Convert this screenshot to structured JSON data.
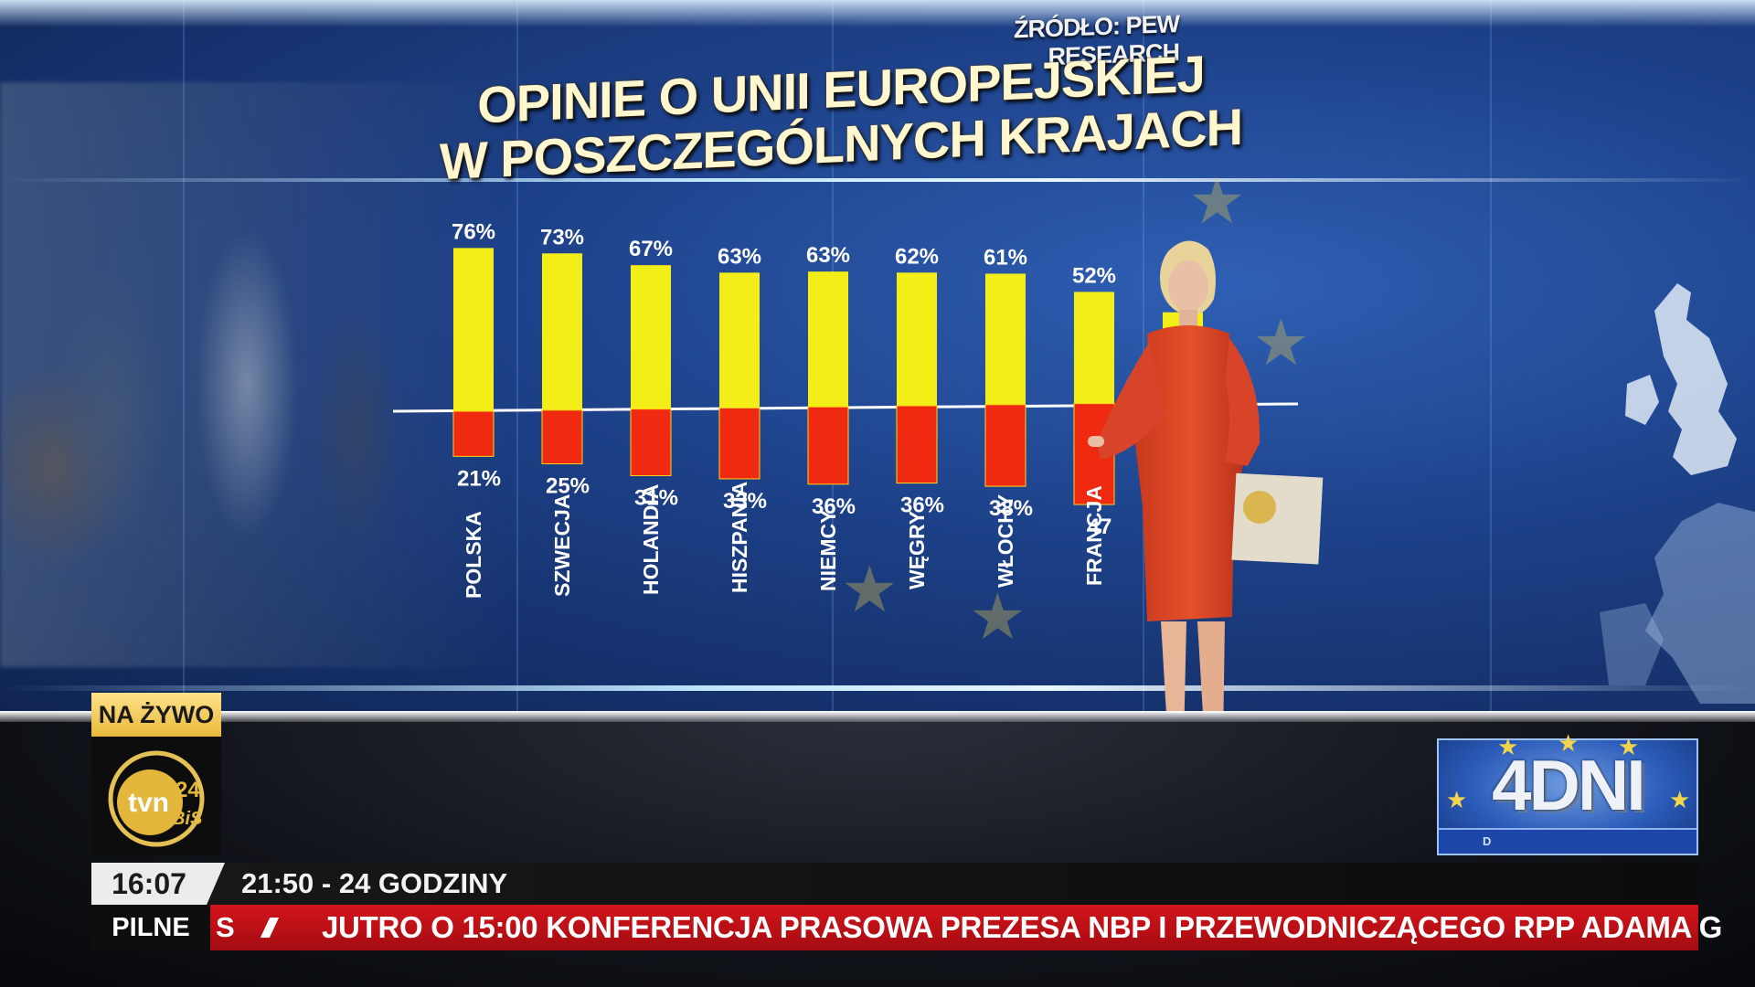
{
  "broadcast": {
    "live_label": "NA ŻYWO",
    "channel_logo": "tvn24 BiS",
    "channel_logo_main": "tvn",
    "channel_logo_num": "24",
    "channel_logo_sub": "BiS",
    "time": "16:07",
    "info_line": "21:50 - 24 GODZINY",
    "breaking_label": "PILNE",
    "ticker_prev": "S",
    "ticker_text": "JUTRO O 15:00 KONFERENCJA PRASOWA PREZESA NBP I PRZEWODNICZĄCEGO RPP ADAMA G",
    "badge_text": "4DNI",
    "badge_sub": "D"
  },
  "chart_data": {
    "type": "bar",
    "title": "OPINIE O UNII EUROPEJSKIEJ W POSZCZEGÓLNYCH KRAJACH",
    "title_line1": "OPINIE O UNII EUROPEJSKIEJ",
    "title_line2": "W POSZCZEGÓLNYCH KRAJACH",
    "source": "ŹRÓDŁO: PEW RESEARCH",
    "categories": [
      "POLSKA",
      "SZWECJA",
      "HOLANDIA",
      "HISZPANIA",
      "NIEMCY",
      "WĘGRY",
      "WŁOCHY",
      "FRANCJA",
      ""
    ],
    "series": [
      {
        "values": [
          76,
          73,
          67,
          63,
          63,
          62,
          61,
          52,
          null
        ],
        "labels": [
          "76%",
          "73%",
          "67%",
          "63%",
          "63%",
          "62%",
          "61%",
          "52%",
          "%"
        ],
        "direction": "up"
      },
      {
        "values": [
          21,
          25,
          31,
          33,
          36,
          36,
          38,
          47,
          null
        ],
        "labels": [
          "21%",
          "25%",
          "31%",
          "33%",
          "36%",
          "36%",
          "38%",
          "47",
          ""
        ],
        "direction": "down"
      }
    ],
    "ylim": [
      -50,
      80
    ],
    "grid": false,
    "colors": {
      "positive": "#f4ee18",
      "negative": "#ef2a10"
    }
  }
}
